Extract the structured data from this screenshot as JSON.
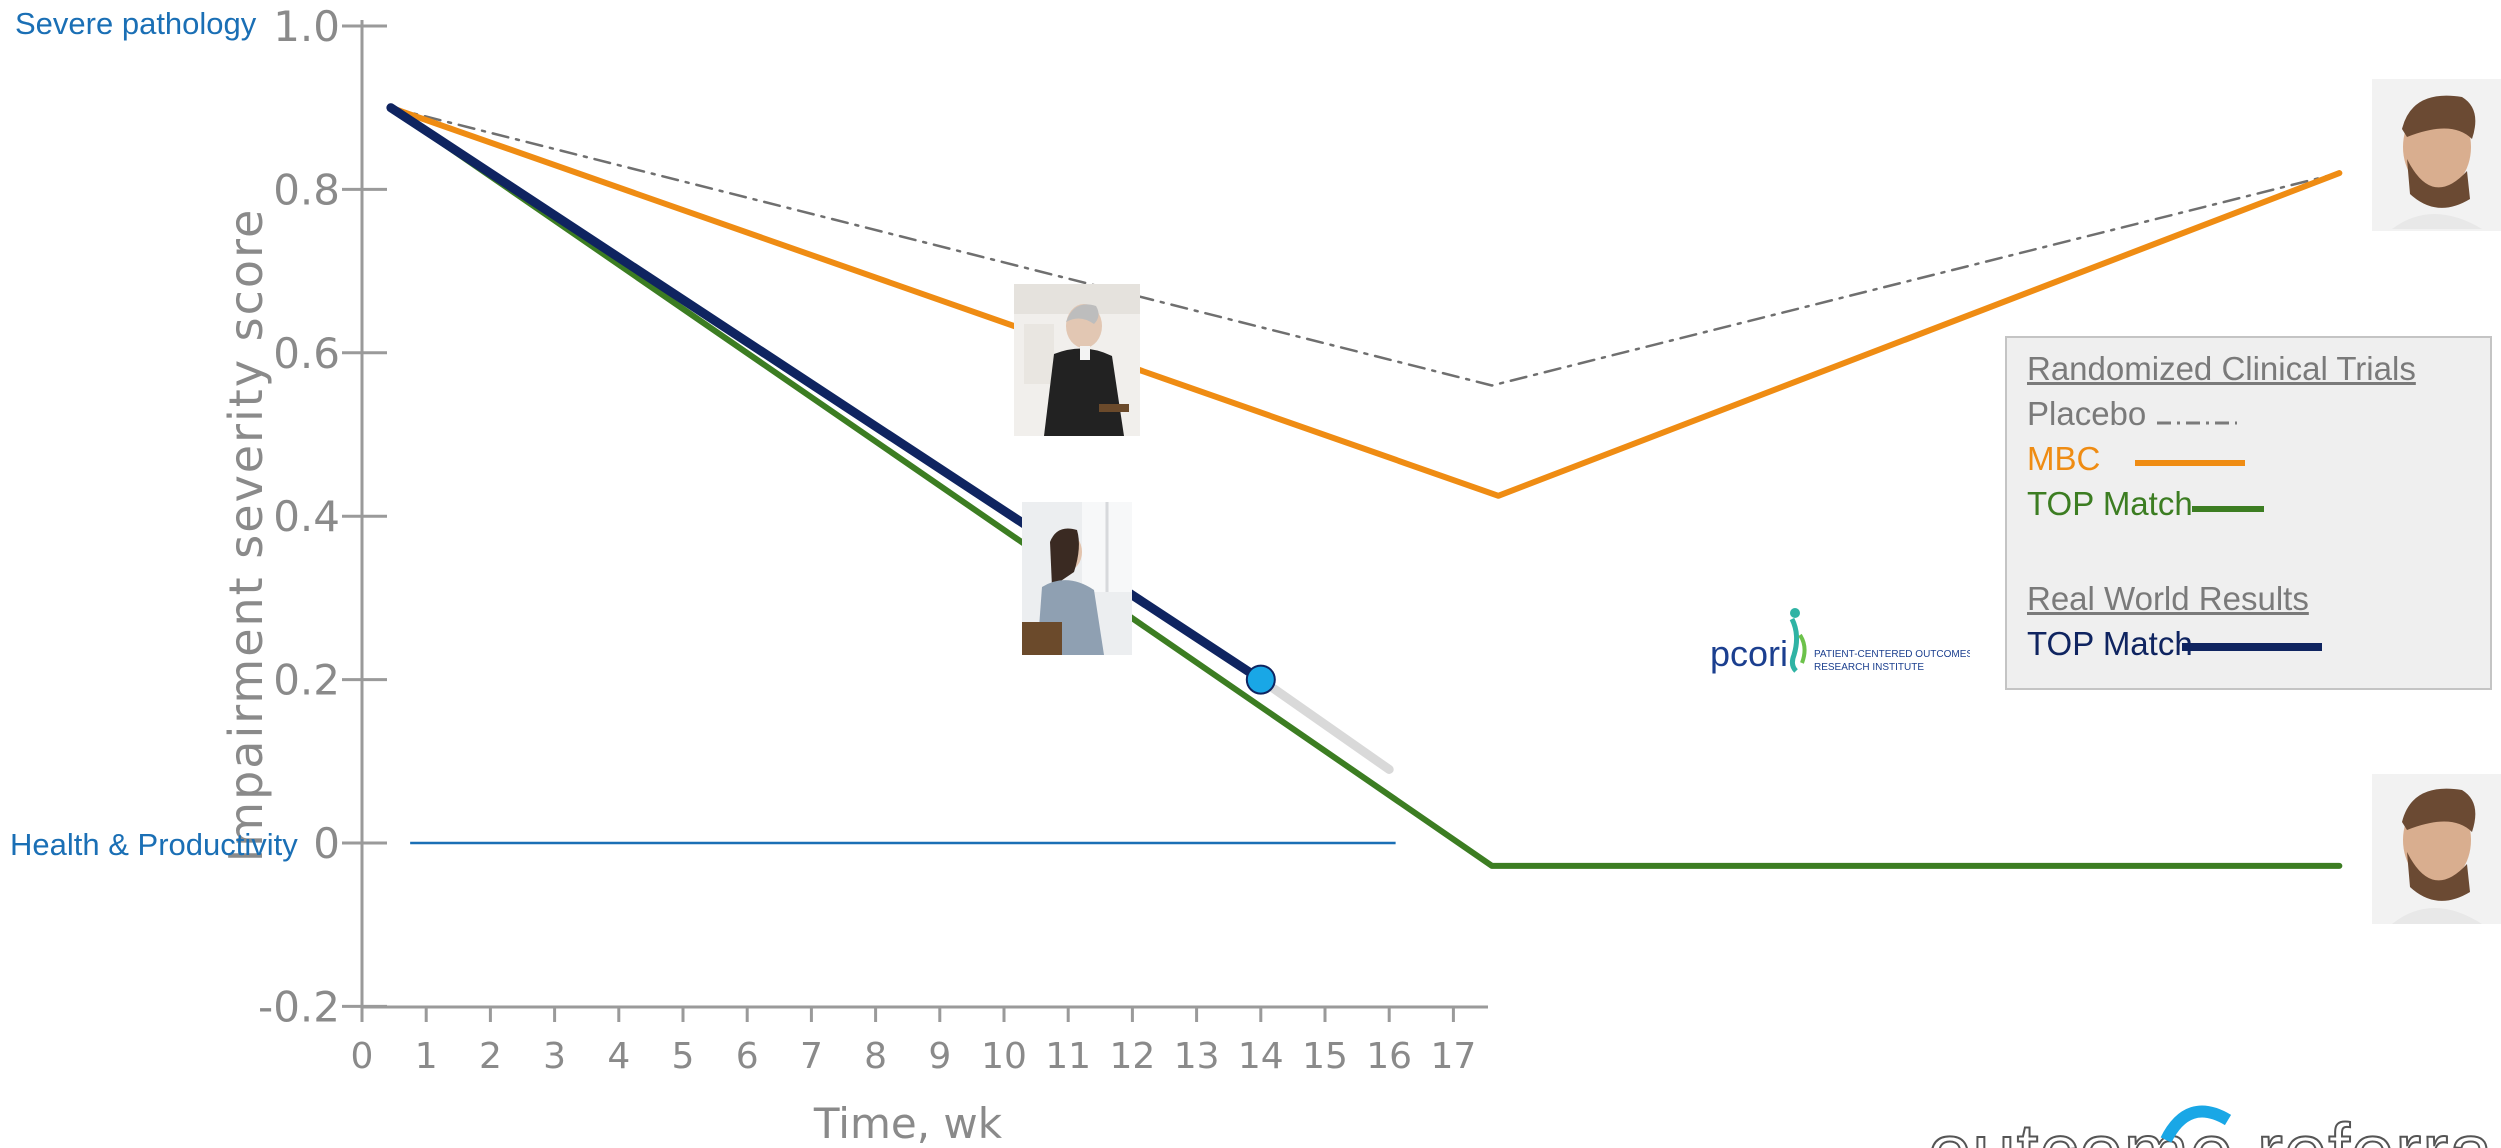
{
  "chart_data": {
    "type": "line",
    "title": "",
    "xlabel": "Time, wk",
    "ylabel": "Impairment severity score",
    "xlim": [
      0,
      17.6
    ],
    "ylim": [
      -0.2,
      1.0
    ],
    "x_ticks": [
      "0",
      "1",
      "2",
      "3",
      "4",
      "5",
      "6",
      "7",
      "8",
      "9",
      "10",
      "11",
      "12",
      "13",
      "14",
      "15",
      "16",
      "17"
    ],
    "y_ticks": [
      "1.0",
      "0.8",
      "0.6",
      "0.4",
      "0.2",
      "0",
      "-0.2"
    ],
    "y_tick_values": [
      1.0,
      0.8,
      0.6,
      0.4,
      0.2,
      0,
      -0.2
    ],
    "side_labels": {
      "top": "Severe pathology",
      "baseline": "Health & Productivity"
    },
    "series": [
      {
        "name": "Placebo",
        "group": "Randomized Clinical Trials",
        "color": "#6f6f6f",
        "dash": "dashdot",
        "points": [
          [
            0.45,
            0.9
          ],
          [
            17.6,
            0.56
          ],
          [
            30.8,
            0.82
          ]
        ]
      },
      {
        "name": "MBC",
        "group": "Randomized Clinical Trials",
        "color": "#ef8c13",
        "points": [
          [
            0.45,
            0.9
          ],
          [
            17.7,
            0.425
          ],
          [
            30.8,
            0.82
          ]
        ]
      },
      {
        "name": "TOP Match",
        "group": "Randomized Clinical Trials",
        "color": "#3c7d22",
        "points": [
          [
            0.45,
            0.9
          ],
          [
            17.6,
            -0.028
          ],
          [
            30.8,
            -0.028
          ]
        ]
      },
      {
        "name": "TOP Match",
        "group": "Real World Results",
        "color": "#0f2460",
        "points": [
          [
            0.45,
            0.9
          ],
          [
            14.0,
            0.2
          ]
        ]
      }
    ],
    "projection": {
      "color": "#d9d9d9",
      "points": [
        [
          14.0,
          0.2
        ],
        [
          16.0,
          0.09
        ]
      ]
    },
    "marker": {
      "x": 14.0,
      "y": 0.2,
      "color": "#19a7e6"
    },
    "baseline_line": {
      "color": "#1a6fb5",
      "x": [
        0.75,
        16.1
      ],
      "y": 0
    },
    "legend": {
      "placement": "right",
      "groups": [
        {
          "heading": "Randomized Clinical Trials",
          "items": [
            {
              "label": "Placebo",
              "color": "#7a7a7a",
              "text_color": "#7a7a7a"
            },
            {
              "label": "MBC",
              "color": "#ef8c13",
              "text_color": "#ef8c13"
            },
            {
              "label": "TOP Match",
              "color": "#3c7d22",
              "text_color": "#3c7d22"
            }
          ]
        },
        {
          "heading": "Real World Results",
          "items": [
            {
              "label": "TOP Match",
              "color": "#0f2460",
              "text_color": "#0f2460"
            }
          ]
        }
      ]
    }
  },
  "logos": {
    "pcori": {
      "name": "pcori",
      "tagline_line1": "PATIENT-CENTERED OUTCOMES",
      "tagline_line2": "RESEARCH INSTITUTE"
    },
    "brand": {
      "text": "outcome referrals"
    }
  },
  "photos": [
    {
      "subject": "older woman in black blazer, seated in profile"
    },
    {
      "subject": "young woman with glasses, seated in profile"
    },
    {
      "subject": "bearded man in profile"
    },
    {
      "subject": "bearded man in profile"
    }
  ]
}
